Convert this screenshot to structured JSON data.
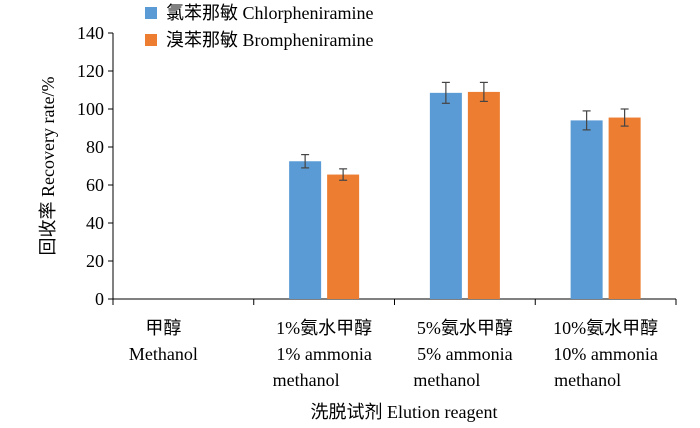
{
  "chart_data": {
    "type": "bar",
    "ylabel": "回收率  Recovery rate/%",
    "xlabel": "洗脱试剂  Elution reagent",
    "ylim": [
      0,
      140
    ],
    "yticks": [
      0,
      20,
      40,
      60,
      80,
      100,
      120,
      140
    ],
    "grid": false,
    "legend_position": "top-left",
    "categories": [
      [
        "甲醇",
        "Methanol"
      ],
      [
        "1%氨水甲醇",
        "1% ammonia",
        "methanol"
      ],
      [
        "5%氨水甲醇",
        "5% ammonia",
        "methanol"
      ],
      [
        "10%氨水甲醇",
        "10% ammonia",
        "methanol"
      ]
    ],
    "series": [
      {
        "name": "氯苯那敏  Chlorpheniramine",
        "color": "#5b9bd5",
        "values": [
          0,
          72.5,
          108.5,
          94.0
        ],
        "errors": [
          0,
          3.5,
          5.5,
          5.0
        ]
      },
      {
        "name": "溴苯那敏  Brompheniramine",
        "color": "#ed7d31",
        "values": [
          0,
          65.5,
          109.0,
          95.5
        ],
        "errors": [
          0,
          3.0,
          5.0,
          4.5
        ]
      }
    ]
  }
}
